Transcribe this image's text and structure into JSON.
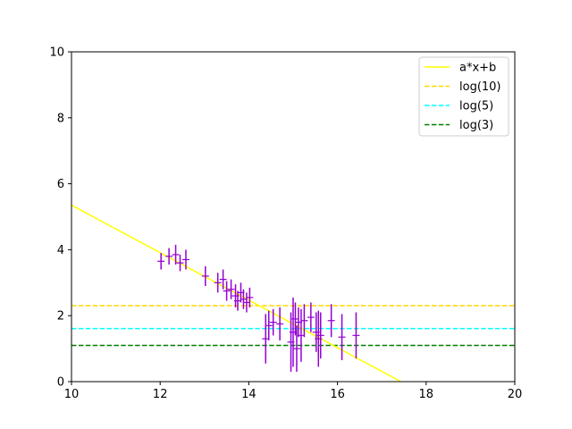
{
  "chart_data": {
    "type": "scatter",
    "title": "",
    "xlabel": "",
    "ylabel": "",
    "xlim": [
      10,
      20
    ],
    "ylim": [
      0,
      10
    ],
    "x_ticks": [
      10,
      12,
      14,
      16,
      18,
      20
    ],
    "y_ticks": [
      0,
      2,
      4,
      6,
      8,
      10
    ],
    "grid": false,
    "legend_position": "top-right",
    "colors": {
      "points": "#9400d3",
      "fit": "#ffff00",
      "log10": "#ffd700",
      "log5": "#00ffff",
      "log3": "#008000"
    },
    "fit_line": {
      "name": "a*x+b",
      "slope": -0.72,
      "intercept": 12.55
    },
    "hlines": [
      {
        "name": "log(10)",
        "y": 2.303,
        "style": "dashed"
      },
      {
        "name": "log(5)",
        "y": 1.609,
        "style": "dashed"
      },
      {
        "name": "log(3)",
        "y": 1.099,
        "style": "dashed"
      }
    ],
    "points": [
      {
        "x": 12.02,
        "y": 3.65,
        "err": 0.25
      },
      {
        "x": 12.2,
        "y": 3.8,
        "err": 0.25
      },
      {
        "x": 12.35,
        "y": 3.85,
        "err": 0.3
      },
      {
        "x": 12.45,
        "y": 3.6,
        "err": 0.25
      },
      {
        "x": 12.58,
        "y": 3.7,
        "err": 0.3
      },
      {
        "x": 13.02,
        "y": 3.2,
        "err": 0.3
      },
      {
        "x": 13.3,
        "y": 3.0,
        "err": 0.3
      },
      {
        "x": 13.42,
        "y": 3.1,
        "err": 0.3
      },
      {
        "x": 13.5,
        "y": 2.75,
        "err": 0.3
      },
      {
        "x": 13.6,
        "y": 2.8,
        "err": 0.3
      },
      {
        "x": 13.7,
        "y": 2.6,
        "err": 0.35
      },
      {
        "x": 13.75,
        "y": 2.45,
        "err": 0.3
      },
      {
        "x": 13.82,
        "y": 2.7,
        "err": 0.3
      },
      {
        "x": 13.88,
        "y": 2.5,
        "err": 0.3
      },
      {
        "x": 13.95,
        "y": 2.4,
        "err": 0.3
      },
      {
        "x": 14.02,
        "y": 2.55,
        "err": 0.3
      },
      {
        "x": 14.38,
        "y": 1.3,
        "err": 0.75
      },
      {
        "x": 14.45,
        "y": 1.7,
        "err": 0.45
      },
      {
        "x": 14.55,
        "y": 1.8,
        "err": 0.4
      },
      {
        "x": 14.7,
        "y": 1.75,
        "err": 0.5
      },
      {
        "x": 14.95,
        "y": 1.2,
        "err": 0.9
      },
      {
        "x": 15.0,
        "y": 1.5,
        "err": 1.05
      },
      {
        "x": 15.05,
        "y": 1.9,
        "err": 0.5
      },
      {
        "x": 15.08,
        "y": 1.0,
        "err": 0.7
      },
      {
        "x": 15.12,
        "y": 1.8,
        "err": 0.45
      },
      {
        "x": 15.18,
        "y": 1.4,
        "err": 0.8
      },
      {
        "x": 15.25,
        "y": 1.85,
        "err": 0.5
      },
      {
        "x": 15.4,
        "y": 1.95,
        "err": 0.45
      },
      {
        "x": 15.52,
        "y": 1.5,
        "err": 0.6
      },
      {
        "x": 15.57,
        "y": 1.3,
        "err": 0.85
      },
      {
        "x": 15.62,
        "y": 1.4,
        "err": 0.7
      },
      {
        "x": 15.86,
        "y": 1.85,
        "err": 0.5
      },
      {
        "x": 16.1,
        "y": 1.35,
        "err": 0.7
      },
      {
        "x": 16.42,
        "y": 1.4,
        "err": 0.7
      }
    ]
  }
}
